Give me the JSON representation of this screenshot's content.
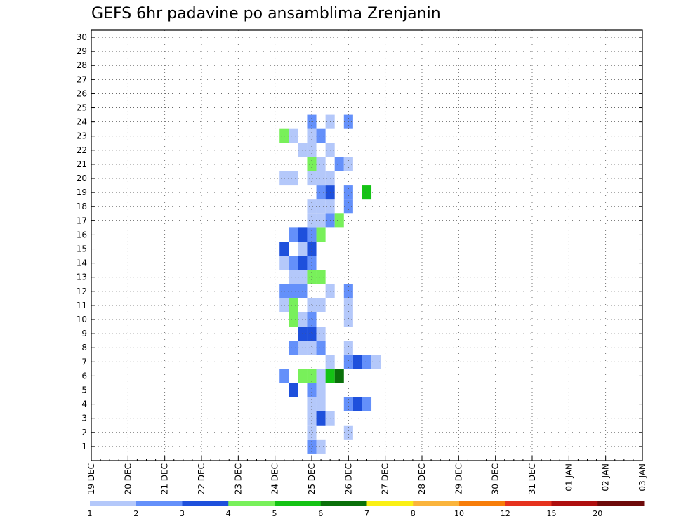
{
  "chart_data": {
    "type": "heatmap",
    "title": "GEFS 6hr padavine po ansamblima Zrenjanin",
    "xlabel": "",
    "ylabel": "",
    "x_ticks": [
      "19 DEC",
      "20 DEC",
      "21 DEC",
      "22 DEC",
      "23 DEC",
      "24 DEC",
      "25 DEC",
      "26 DEC",
      "27 DEC",
      "28 DEC",
      "29 DEC",
      "30 DEC",
      "31 DEC",
      "01 JAN",
      "02 JAN",
      "03 JAN"
    ],
    "y_ticks": [
      "1",
      "2",
      "3",
      "4",
      "5",
      "6",
      "7",
      "8",
      "9",
      "10",
      "11",
      "12",
      "13",
      "14",
      "15",
      "16",
      "17",
      "18",
      "19",
      "20",
      "21",
      "22",
      "23",
      "24",
      "25",
      "26",
      "27",
      "28",
      "29",
      "30"
    ],
    "x_range": [
      "19 DEC 00",
      "03 JAN 00"
    ],
    "y_range": [
      0,
      30
    ],
    "grid": true,
    "legend": {
      "position": "bottom",
      "bins": [
        "#b4c8fa",
        "#6490fa",
        "#1e50dc",
        "#78f05a",
        "#14c314",
        "#0a700a",
        "#faf014",
        "#fab43c",
        "#f77d0a",
        "#e6321e",
        "#af0f0f",
        "#6e0a0a"
      ],
      "labels": [
        "1",
        "2",
        "3",
        "4",
        "5",
        "6",
        "7",
        "8",
        "10",
        "12",
        "15",
        "20"
      ]
    },
    "cells": [
      [
        1,
        25.0,
        2
      ],
      [
        1,
        25.25,
        1
      ],
      [
        2,
        25.0,
        1
      ],
      [
        2,
        26.0,
        1
      ],
      [
        3,
        25.0,
        1
      ],
      [
        3,
        25.25,
        3
      ],
      [
        3,
        25.5,
        1
      ],
      [
        4,
        25.0,
        1
      ],
      [
        4,
        25.25,
        1
      ],
      [
        4,
        26.0,
        2
      ],
      [
        4,
        26.25,
        3
      ],
      [
        4,
        26.5,
        2
      ],
      [
        5,
        24.5,
        3
      ],
      [
        5,
        25.0,
        2
      ],
      [
        5,
        25.25,
        1
      ],
      [
        6,
        24.25,
        2
      ],
      [
        6,
        24.75,
        4
      ],
      [
        6,
        25.0,
        4
      ],
      [
        6,
        25.25,
        1
      ],
      [
        6,
        25.5,
        5
      ],
      [
        6,
        25.75,
        6
      ],
      [
        7,
        25.5,
        1
      ],
      [
        7,
        26.0,
        2
      ],
      [
        7,
        26.25,
        3
      ],
      [
        7,
        26.5,
        2
      ],
      [
        7,
        26.75,
        1
      ],
      [
        8,
        24.5,
        2
      ],
      [
        8,
        24.75,
        1
      ],
      [
        8,
        25.0,
        1
      ],
      [
        8,
        25.25,
        2
      ],
      [
        8,
        26.0,
        1
      ],
      [
        9,
        24.75,
        3
      ],
      [
        9,
        25.0,
        3
      ],
      [
        9,
        25.25,
        1
      ],
      [
        10,
        24.5,
        4
      ],
      [
        10,
        24.75,
        1
      ],
      [
        10,
        25.0,
        2
      ],
      [
        10,
        26.0,
        1
      ],
      [
        11,
        24.25,
        1
      ],
      [
        11,
        24.5,
        4
      ],
      [
        11,
        25.0,
        1
      ],
      [
        11,
        25.25,
        1
      ],
      [
        11,
        26.0,
        1
      ],
      [
        12,
        24.25,
        2
      ],
      [
        12,
        24.5,
        2
      ],
      [
        12,
        24.75,
        2
      ],
      [
        12,
        25.5,
        1
      ],
      [
        12,
        26.0,
        2
      ],
      [
        13,
        24.5,
        1
      ],
      [
        13,
        24.75,
        1
      ],
      [
        13,
        25.0,
        4
      ],
      [
        13,
        25.25,
        4
      ],
      [
        14,
        24.25,
        1
      ],
      [
        14,
        24.5,
        2
      ],
      [
        14,
        24.75,
        3
      ],
      [
        14,
        25.0,
        2
      ],
      [
        15,
        24.25,
        3
      ],
      [
        15,
        24.75,
        1
      ],
      [
        15,
        25.0,
        3
      ],
      [
        16,
        24.5,
        2
      ],
      [
        16,
        24.75,
        3
      ],
      [
        16,
        25.0,
        2
      ],
      [
        16,
        25.25,
        4
      ],
      [
        17,
        25.0,
        1
      ],
      [
        17,
        25.25,
        1
      ],
      [
        17,
        25.5,
        2
      ],
      [
        17,
        25.75,
        4
      ],
      [
        18,
        25.0,
        1
      ],
      [
        18,
        25.25,
        1
      ],
      [
        18,
        25.5,
        1
      ],
      [
        18,
        26.0,
        2
      ],
      [
        19,
        25.25,
        2
      ],
      [
        19,
        25.5,
        3
      ],
      [
        19,
        26.0,
        2
      ],
      [
        19,
        26.5,
        5
      ],
      [
        20,
        24.25,
        1
      ],
      [
        20,
        24.5,
        1
      ],
      [
        20,
        25.0,
        1
      ],
      [
        20,
        25.25,
        1
      ],
      [
        20,
        25.5,
        1
      ],
      [
        21,
        25.0,
        4
      ],
      [
        21,
        25.25,
        1
      ],
      [
        21,
        25.75,
        2
      ],
      [
        21,
        26.0,
        1
      ],
      [
        22,
        24.75,
        1
      ],
      [
        22,
        25.0,
        1
      ],
      [
        22,
        25.5,
        1
      ],
      [
        23,
        24.25,
        4
      ],
      [
        23,
        24.5,
        1
      ],
      [
        23,
        25.0,
        1
      ],
      [
        23,
        25.25,
        2
      ],
      [
        24,
        25.0,
        2
      ],
      [
        24,
        25.5,
        1
      ],
      [
        24,
        26.0,
        2
      ]
    ]
  }
}
